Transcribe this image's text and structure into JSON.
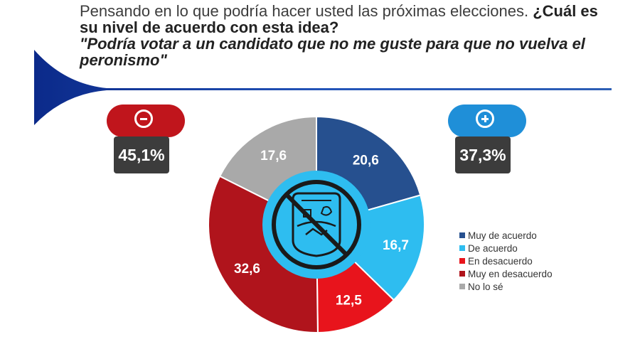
{
  "title": {
    "part1": "Pensando en lo que podría hacer usted las próximas elecciones. ",
    "part2": "¿Cuál es su nivel de acuerdo con esta idea?",
    "part3": "\"Podría votar a un candidato que no me guste para que no vuelva el peronismo\""
  },
  "summary": {
    "negative": {
      "icon": "minus-icon",
      "value": "45,1%",
      "color": "#c0151c"
    },
    "positive": {
      "icon": "plus-icon",
      "value": "37,3%",
      "color": "#1f8fd8"
    }
  },
  "center_logo": {
    "icon": "prohibited-peronism-logo-icon"
  },
  "colors": {
    "muy_de_acuerdo": "#26508f",
    "de_acuerdo": "#2ebdf0",
    "en_desacuerdo": "#e8141c",
    "muy_en_desacuerdo": "#b0141c",
    "no_lo_se": "#a9a9a9"
  },
  "chart_data": {
    "type": "pie",
    "donut": true,
    "categories": [
      "Muy de acuerdo",
      "De acuerdo",
      "En desacuerdo",
      "Muy en desacuerdo",
      "No lo sé"
    ],
    "values": [
      20.6,
      16.7,
      12.5,
      32.6,
      17.6
    ],
    "labels": [
      "20,6",
      "16,7",
      "12,5",
      "32,6",
      "17,6"
    ],
    "colors": [
      "#26508f",
      "#2ebdf0",
      "#e8141c",
      "#b0141c",
      "#a9a9a9"
    ],
    "legend": "right"
  }
}
